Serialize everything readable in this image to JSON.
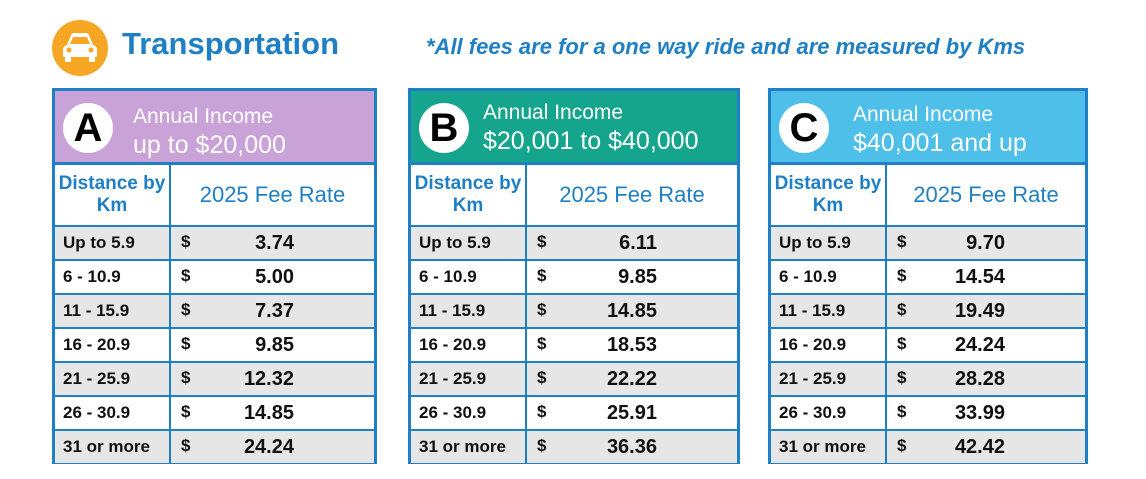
{
  "header": {
    "title": "Transportation",
    "note": "*All fees are for a one way ride and are measured by Kms",
    "icon": "car-icon"
  },
  "colors": {
    "accent": "#1f7fc4",
    "icon_circle": "#f6a623",
    "tier_a": "#c9a3d8",
    "tier_b": "#14a58c",
    "tier_c": "#4dbfe8",
    "row_shade": "#e6e6e6"
  },
  "columns": {
    "distance": "Distance by Km",
    "fee": "2025 Fee Rate"
  },
  "distances": [
    "Up to 5.9",
    "6  - 10.9",
    "11 - 15.9",
    "16 - 20.9",
    "21 - 25.9",
    "26 - 30.9",
    "31 or more"
  ],
  "currency": "$",
  "tiers": [
    {
      "letter": "A",
      "label": "Annual Income",
      "range": "up to $20,000",
      "fees": [
        "3.74",
        "5.00",
        "7.37",
        "9.85",
        "12.32",
        "14.85",
        "24.24"
      ]
    },
    {
      "letter": "B",
      "label": "Annual Income",
      "range": "$20,001 to $40,000",
      "fees": [
        "6.11",
        "9.85",
        "14.85",
        "18.53",
        "22.22",
        "25.91",
        "36.36"
      ]
    },
    {
      "letter": "C",
      "label": "Annual Income",
      "range": "$40,001 and up",
      "fees": [
        "9.70",
        "14.54",
        "19.49",
        "24.24",
        "28.28",
        "33.99",
        "42.42"
      ]
    }
  ]
}
